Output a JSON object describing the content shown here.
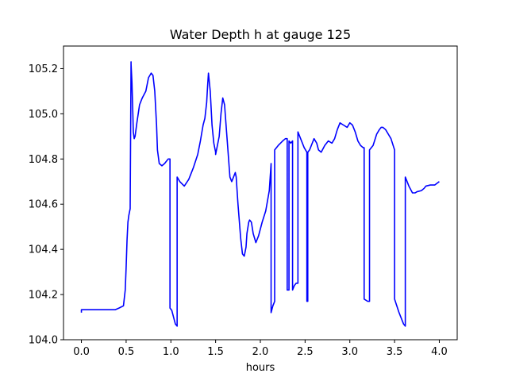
{
  "chart_data": {
    "type": "line",
    "title": "Water Depth h at gauge 125",
    "xlabel": "hours",
    "ylabel": "",
    "xlim": [
      -0.2,
      4.2
    ],
    "ylim": [
      104.0,
      105.3
    ],
    "xticks": [
      0.0,
      0.5,
      1.0,
      1.5,
      2.0,
      2.5,
      3.0,
      3.5,
      4.0
    ],
    "xtick_labels": [
      "0.0",
      "0.5",
      "1.0",
      "1.5",
      "2.0",
      "2.5",
      "3.0",
      "3.5",
      "4.0"
    ],
    "yticks": [
      104.0,
      104.2,
      104.4,
      104.6,
      104.8,
      105.0,
      105.2
    ],
    "ytick_labels": [
      "104.0",
      "104.2",
      "104.4",
      "104.6",
      "104.8",
      "105.0",
      "105.2"
    ],
    "grid": false,
    "series": [
      {
        "color": "#0000ff",
        "x": [
          0.0,
          0.0,
          0.2,
          0.38,
          0.42,
          0.47,
          0.49,
          0.5,
          0.51,
          0.52,
          0.53,
          0.545,
          0.555,
          0.555,
          0.565,
          0.575,
          0.58,
          0.59,
          0.6,
          0.62,
          0.65,
          0.68,
          0.72,
          0.75,
          0.78,
          0.8,
          0.82,
          0.84,
          0.85,
          0.87,
          0.9,
          0.93,
          0.95,
          0.97,
          0.99,
          0.99,
          1.01,
          1.03,
          1.05,
          1.07,
          1.07,
          1.1,
          1.15,
          1.2,
          1.25,
          1.3,
          1.33,
          1.36,
          1.38,
          1.4,
          1.41,
          1.42,
          1.44,
          1.46,
          1.48,
          1.5,
          1.5,
          1.52,
          1.54,
          1.56,
          1.58,
          1.6,
          1.63,
          1.66,
          1.68,
          1.7,
          1.72,
          1.73,
          1.75,
          1.78,
          1.8,
          1.82,
          1.84,
          1.85,
          1.87,
          1.88,
          1.9,
          1.92,
          1.95,
          1.98,
          2.02,
          2.06,
          2.1,
          2.12,
          2.12,
          2.14,
          2.16,
          2.16,
          2.2,
          2.25,
          2.28,
          2.3,
          2.3,
          2.32,
          2.32,
          2.34,
          2.36,
          2.36,
          2.38,
          2.4,
          2.42,
          2.42,
          2.45,
          2.49,
          2.52,
          2.52,
          2.53,
          2.53,
          2.55,
          2.58,
          2.6,
          2.63,
          2.65,
          2.68,
          2.72,
          2.76,
          2.8,
          2.83,
          2.86,
          2.89,
          2.93,
          2.97,
          3.0,
          3.03,
          3.06,
          3.09,
          3.12,
          3.15,
          3.16,
          3.16,
          3.2,
          3.22,
          3.22,
          3.26,
          3.3,
          3.33,
          3.35,
          3.37,
          3.4,
          3.43,
          3.46,
          3.5,
          3.5,
          3.55,
          3.6,
          3.62,
          3.62,
          3.66,
          3.7,
          3.73,
          3.75,
          3.8,
          3.83,
          3.85,
          3.9,
          3.95,
          4.0
        ],
        "y": [
          104.12,
          104.133,
          104.133,
          104.133,
          104.14,
          104.15,
          104.22,
          104.32,
          104.44,
          104.52,
          104.55,
          104.58,
          105.23,
          105.22,
          105.14,
          105.0,
          104.92,
          104.89,
          104.9,
          104.96,
          105.04,
          105.07,
          105.1,
          105.16,
          105.18,
          105.17,
          105.1,
          104.95,
          104.84,
          104.78,
          104.77,
          104.78,
          104.79,
          104.8,
          104.8,
          104.14,
          104.13,
          104.1,
          104.07,
          104.06,
          104.72,
          104.7,
          104.68,
          104.71,
          104.76,
          104.82,
          104.88,
          104.95,
          104.98,
          105.05,
          105.12,
          105.18,
          105.1,
          104.95,
          104.87,
          104.83,
          104.82,
          104.86,
          104.9,
          105.0,
          105.07,
          105.04,
          104.88,
          104.72,
          104.7,
          104.72,
          104.74,
          104.72,
          104.6,
          104.45,
          104.38,
          104.37,
          104.41,
          104.47,
          104.52,
          104.53,
          104.52,
          104.47,
          104.43,
          104.46,
          104.52,
          104.57,
          104.66,
          104.78,
          104.12,
          104.15,
          104.17,
          104.84,
          104.86,
          104.88,
          104.89,
          104.89,
          104.22,
          104.22,
          104.88,
          104.87,
          104.88,
          104.22,
          104.24,
          104.25,
          104.25,
          104.92,
          104.89,
          104.85,
          104.83,
          104.17,
          104.17,
          104.83,
          104.84,
          104.87,
          104.89,
          104.87,
          104.84,
          104.83,
          104.86,
          104.88,
          104.87,
          104.89,
          104.93,
          104.96,
          104.95,
          104.94,
          104.96,
          104.95,
          104.92,
          104.88,
          104.86,
          104.85,
          104.85,
          104.18,
          104.17,
          104.17,
          104.84,
          104.86,
          104.91,
          104.93,
          104.94,
          104.94,
          104.93,
          104.91,
          104.89,
          104.84,
          104.18,
          104.12,
          104.07,
          104.06,
          104.72,
          104.68,
          104.65,
          104.65,
          104.655,
          104.66,
          104.67,
          104.68,
          104.685,
          104.685,
          104.7
        ]
      }
    ]
  }
}
